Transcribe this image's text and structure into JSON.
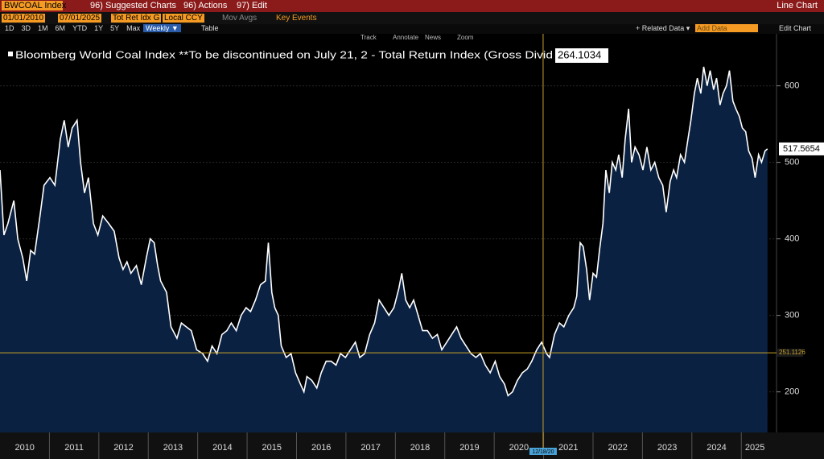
{
  "ui": {
    "ticker": "BWCOAL Index",
    "menu": [
      "96) Suggested Charts",
      "96) Actions",
      "97) Edit"
    ],
    "view": "Line Chart",
    "start_date": "01/01/2010",
    "end_date": "07/01/2025",
    "field": "Tot Ret Idx G",
    "currency": "Local CCY",
    "mov_avgs": "Mov Avgs",
    "key_events": "Key Events",
    "ranges": [
      "1D",
      "3D",
      "1M",
      "6M",
      "YTD",
      "1Y",
      "5Y",
      "Max"
    ],
    "period": "Weekly ▼",
    "table": "Table",
    "related": "+ Related Data ▾",
    "add_data": "Add Data",
    "edit_chart": "Edit Chart",
    "tools": [
      "Track",
      "Annotate",
      "News",
      "Zoom"
    ]
  },
  "chart_data": {
    "type": "line",
    "series": [
      {
        "name": "Bloomberg World Coal Index **To be discontinued on July 21, 2 - Total Return Index (Gross Divid",
        "color": "#ffffff",
        "fill": "#0b2142",
        "x": [
          2010.0,
          2010.08,
          2010.16,
          2010.28,
          2010.36,
          2010.46,
          2010.54,
          2010.62,
          2010.7,
          2010.81,
          2010.89,
          2011.01,
          2011.11,
          2011.22,
          2011.3,
          2011.38,
          2011.46,
          2011.56,
          2011.63,
          2011.71,
          2011.79,
          2011.89,
          2011.98,
          2012.08,
          2012.2,
          2012.31,
          2012.41,
          2012.49,
          2012.57,
          2012.65,
          2012.76,
          2012.86,
          2012.96,
          2013.04,
          2013.12,
          2013.19,
          2013.25,
          2013.37,
          2013.46,
          2013.58,
          2013.67,
          2013.77,
          2013.87,
          2013.98,
          2014.1,
          2014.2,
          2014.29,
          2014.39,
          2014.49,
          2014.59,
          2014.68,
          2014.78,
          2014.88,
          2014.98,
          2015.07,
          2015.17,
          2015.27,
          2015.37,
          2015.43,
          2015.5,
          2015.56,
          2015.63,
          2015.69,
          2015.79,
          2015.89,
          2015.98,
          2016.08,
          2016.15,
          2016.21,
          2016.31,
          2016.41,
          2016.5,
          2016.6,
          2016.7,
          2016.8,
          2016.89,
          2016.99,
          2017.09,
          2017.19,
          2017.28,
          2017.38,
          2017.48,
          2017.58,
          2017.67,
          2017.77,
          2017.87,
          2017.97,
          2018.07,
          2018.13,
          2018.21,
          2018.29,
          2018.37,
          2018.46,
          2018.55,
          2018.65,
          2018.75,
          2018.85,
          2018.94,
          2019.04,
          2019.14,
          2019.24,
          2019.33,
          2019.43,
          2019.53,
          2019.63,
          2019.72,
          2019.82,
          2019.92,
          2020.02,
          2020.11,
          2020.21,
          2020.28,
          2020.37,
          2020.47,
          2020.57,
          2020.67,
          2020.76,
          2020.86,
          2020.96,
          2021.06,
          2021.12,
          2021.22,
          2021.32,
          2021.41,
          2021.51,
          2021.61,
          2021.67,
          2021.74,
          2021.8,
          2021.87,
          2021.93,
          2022.0,
          2022.07,
          2022.13,
          2022.2,
          2022.26,
          2022.33,
          2022.39,
          2022.46,
          2022.52,
          2022.59,
          2022.65,
          2022.72,
          2022.78,
          2022.85,
          2022.93,
          2023.01,
          2023.09,
          2023.17,
          2023.25,
          2023.33,
          2023.41,
          2023.48,
          2023.56,
          2023.63,
          2023.69,
          2023.77,
          2023.85,
          2023.92,
          2023.98,
          2024.05,
          2024.11,
          2024.18,
          2024.24,
          2024.31,
          2024.37,
          2024.44,
          2024.5,
          2024.57,
          2024.63,
          2024.7,
          2024.76,
          2024.83,
          2024.89,
          2024.96,
          2025.02,
          2025.09,
          2025.15,
          2025.22,
          2025.28,
          2025.35,
          2025.41,
          2025.48,
          2025.53
        ],
        "values": [
          490,
          405,
          420,
          450,
          400,
          375,
          345,
          385,
          380,
          430,
          470,
          480,
          470,
          530,
          555,
          520,
          545,
          555,
          500,
          460,
          480,
          420,
          405,
          430,
          420,
          410,
          375,
          360,
          370,
          355,
          365,
          340,
          375,
          400,
          395,
          365,
          345,
          330,
          285,
          270,
          290,
          285,
          280,
          255,
          250,
          240,
          260,
          250,
          275,
          280,
          290,
          280,
          300,
          310,
          305,
          320,
          340,
          345,
          395,
          330,
          310,
          300,
          260,
          245,
          250,
          225,
          210,
          200,
          220,
          215,
          205,
          225,
          240,
          240,
          235,
          250,
          245,
          255,
          265,
          245,
          250,
          275,
          290,
          320,
          310,
          300,
          310,
          335,
          355,
          320,
          310,
          320,
          300,
          280,
          280,
          270,
          275,
          255,
          265,
          275,
          285,
          270,
          260,
          250,
          245,
          250,
          235,
          225,
          240,
          220,
          210,
          195,
          200,
          215,
          225,
          230,
          240,
          255,
          265,
          250,
          245,
          275,
          290,
          285,
          300,
          310,
          325,
          395,
          390,
          360,
          320,
          355,
          350,
          385,
          420,
          490,
          460,
          500,
          490,
          510,
          480,
          530,
          570,
          500,
          520,
          510,
          490,
          520,
          490,
          500,
          480,
          470,
          435,
          475,
          490,
          480,
          510,
          500,
          530,
          555,
          590,
          610,
          590,
          625,
          600,
          620,
          595,
          610,
          575,
          590,
          600,
          620,
          580,
          570,
          560,
          545,
          540,
          515,
          505,
          480,
          510,
          500,
          515,
          517.5654
        ]
      }
    ],
    "last_value": 517.5654,
    "legend_value": 264.1034,
    "reference_line": {
      "value": 251.1126,
      "label": "251.1126"
    },
    "crosshair": {
      "x": 2020.99,
      "label": "12/18/20"
    },
    "xlim": [
      2010,
      2025.55
    ],
    "xticks": [
      {
        "value": 2010,
        "label": "2010"
      },
      {
        "value": 2011,
        "label": "2011"
      },
      {
        "value": 2012,
        "label": "2012"
      },
      {
        "value": 2013,
        "label": "2013"
      },
      {
        "value": 2014,
        "label": "2014"
      },
      {
        "value": 2015,
        "label": "2015"
      },
      {
        "value": 2016,
        "label": "2016"
      },
      {
        "value": 2017,
        "label": "2017"
      },
      {
        "value": 2018,
        "label": "2018"
      },
      {
        "value": 2019,
        "label": "2019"
      },
      {
        "value": 2020,
        "label": "2020"
      },
      {
        "value": 2021,
        "label": "2021"
      },
      {
        "value": 2022,
        "label": "2022"
      },
      {
        "value": 2023,
        "label": "2023"
      },
      {
        "value": 2024,
        "label": "2024"
      },
      {
        "value": 2025,
        "label": "2025"
      }
    ],
    "ylim": [
      147,
      668
    ],
    "yticks": [
      200,
      300,
      400,
      500,
      600
    ],
    "grid": true
  }
}
